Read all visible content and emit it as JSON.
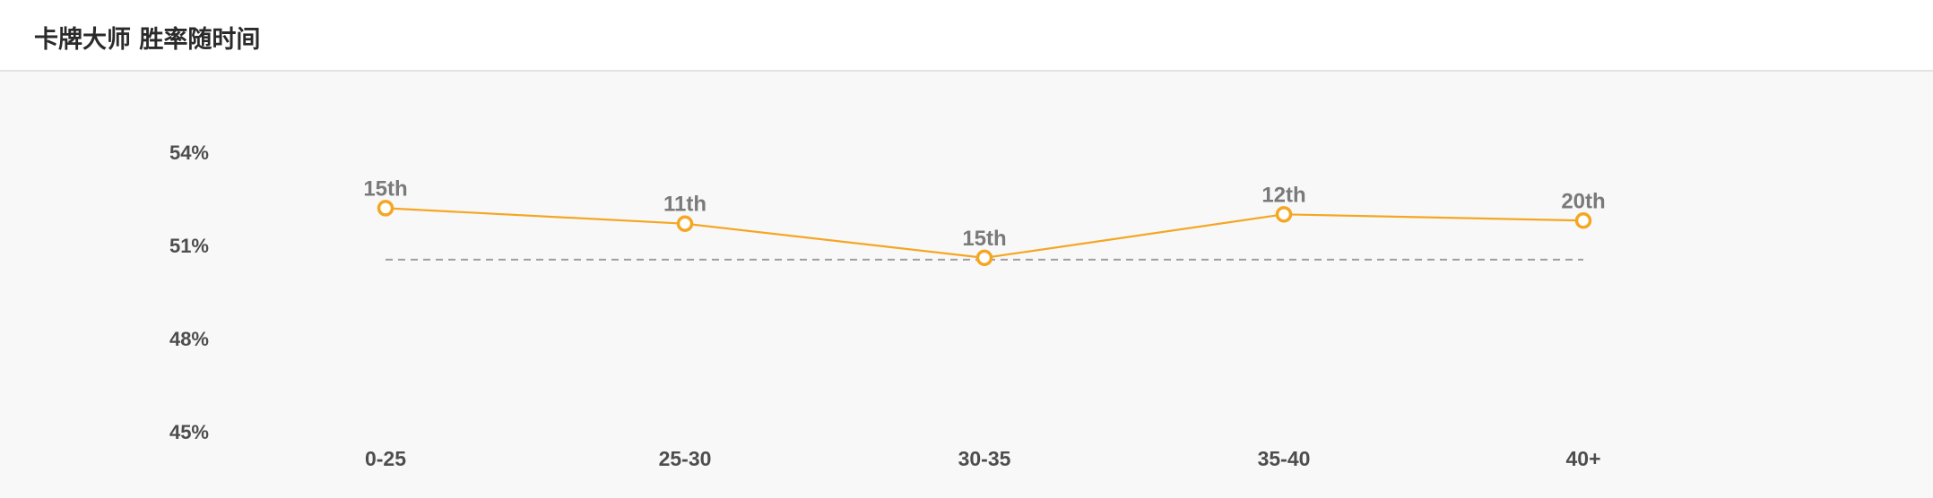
{
  "header": {
    "title": "卡牌大师 胜率随时间"
  },
  "chart_data": {
    "type": "line",
    "title": "卡牌大师 胜率随时间",
    "xlabel": "",
    "ylabel": "",
    "categories": [
      "0-25",
      "25-30",
      "30-35",
      "35-40",
      "40+"
    ],
    "series": [
      {
        "values": [
          52.2,
          51.7,
          50.6,
          52.0,
          51.8
        ],
        "labels": [
          "15th",
          "11th",
          "15th",
          "12th",
          "20th"
        ],
        "color": "#f5a623"
      }
    ],
    "reference_line": {
      "value": 50.6,
      "style": "dashed",
      "color": "#9e9e9e"
    },
    "yticks": [
      "54%",
      "51%",
      "48%",
      "45%"
    ],
    "ytick_values": [
      54,
      51,
      48,
      45
    ],
    "ylim": [
      45,
      54
    ],
    "grid": false,
    "legend": "none"
  }
}
